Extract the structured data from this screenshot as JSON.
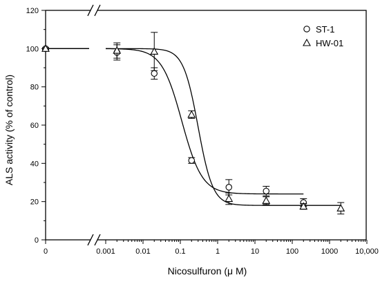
{
  "chart_data": {
    "type": "scatter",
    "xlabel": "Nicosulfuron (μ M)",
    "ylabel": "ALS activity (% of control)",
    "x_scale": "log with axis break (zero shown left of break)",
    "ylim": [
      0,
      120
    ],
    "yticks": [
      0,
      20,
      40,
      60,
      80,
      100,
      120
    ],
    "xticks": [
      {
        "value": 0,
        "label": "0"
      },
      {
        "value": 0.001,
        "label": "0.001"
      },
      {
        "value": 0.01,
        "label": "0.01"
      },
      {
        "value": 0.1,
        "label": "0.1"
      },
      {
        "value": 1,
        "label": "1"
      },
      {
        "value": 10,
        "label": "10"
      },
      {
        "value": 100,
        "label": "100"
      },
      {
        "value": 1000,
        "label": "1000"
      },
      {
        "value": 10000,
        "label": "10,000"
      }
    ],
    "legend_position": "top-right",
    "series": [
      {
        "name": "ST-1",
        "marker": "circle",
        "points": [
          {
            "x": 0,
            "y": 100,
            "err": 0.5
          },
          {
            "x": 0.002,
            "y": 98,
            "err": 4
          },
          {
            "x": 0.02,
            "y": 87,
            "err": 3
          },
          {
            "x": 0.2,
            "y": 41.5,
            "err": 1.5
          },
          {
            "x": 2,
            "y": 27.5,
            "err": 4
          },
          {
            "x": 20,
            "y": 25.5,
            "err": 2.5
          },
          {
            "x": 200,
            "y": 19.5,
            "err": 2
          }
        ],
        "fit": {
          "top": 100,
          "bottom": 24,
          "ec50": 0.11,
          "hill": 1.6
        }
      },
      {
        "name": "HW-01",
        "marker": "triangle",
        "points": [
          {
            "x": 0,
            "y": 100,
            "err": 0.5
          },
          {
            "x": 0.002,
            "y": 99,
            "err": 4
          },
          {
            "x": 0.02,
            "y": 98.5,
            "err": 10
          },
          {
            "x": 0.2,
            "y": 65.5,
            "err": 2
          },
          {
            "x": 2,
            "y": 21.5,
            "err": 3
          },
          {
            "x": 20,
            "y": 20.5,
            "err": 2
          },
          {
            "x": 200,
            "y": 17.5,
            "err": 1.5
          },
          {
            "x": 2000,
            "y": 16.5,
            "err": 3
          }
        ],
        "fit": {
          "top": 100,
          "bottom": 18,
          "ec50": 0.3,
          "hill": 2.2
        }
      }
    ]
  }
}
